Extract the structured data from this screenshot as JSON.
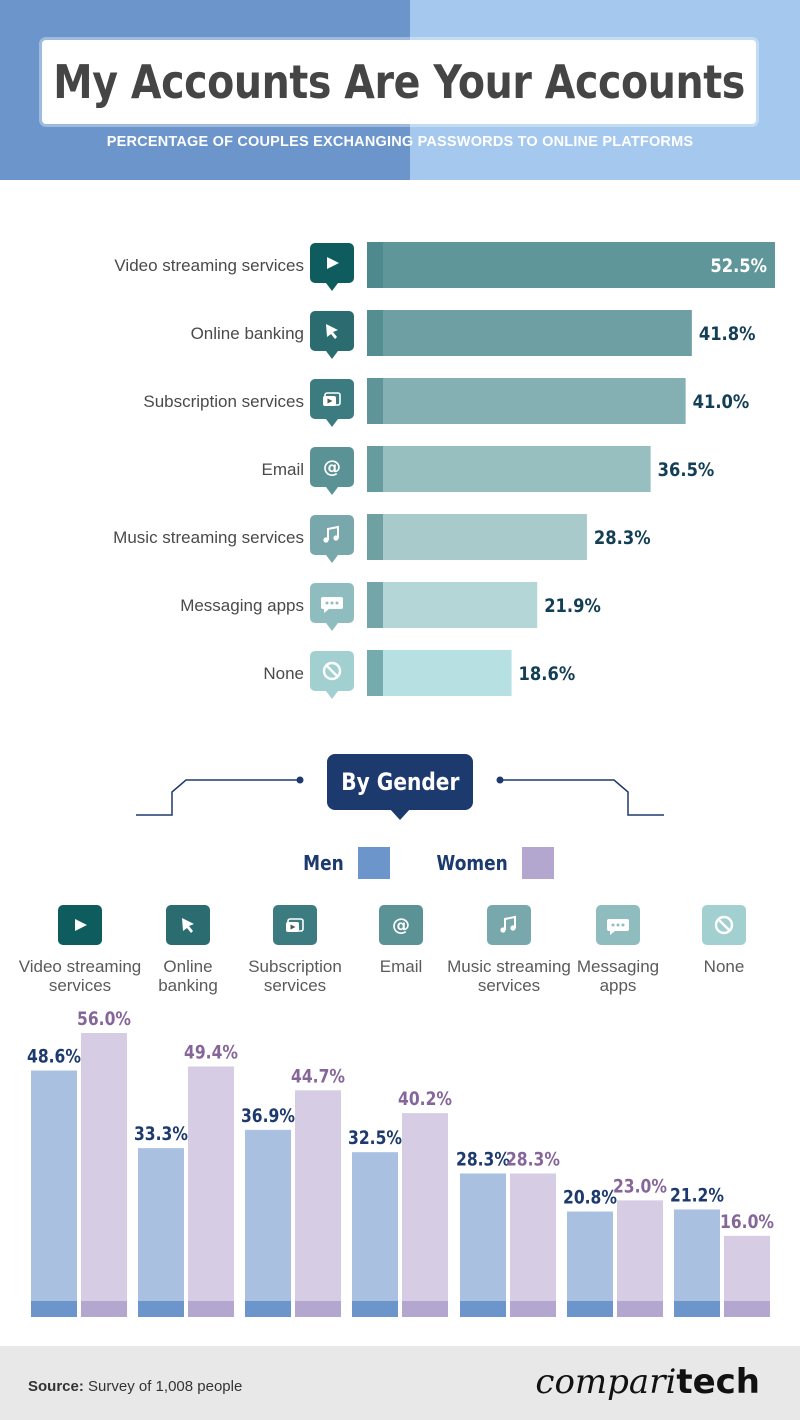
{
  "header": {
    "title": "My Accounts Are Your Accounts",
    "subtitle": "PERCENTAGE OF COUPLES EXCHANGING PASSWORDS TO ONLINE PLATFORMS"
  },
  "gender_section": {
    "badge": "By Gender",
    "legend": [
      {
        "name": "Men",
        "color": "#6b95cb"
      },
      {
        "name": "Women",
        "color": "#b3a6cf"
      }
    ]
  },
  "icons": [
    "play-icon",
    "cursor-icon",
    "video-window-icon",
    "at-sign-icon",
    "music-note-icon",
    "chat-bubble-icon",
    "prohibited-icon"
  ],
  "chart_data": [
    {
      "type": "bar",
      "orientation": "horizontal",
      "title": "My Accounts Are Your Accounts",
      "subtitle": "PERCENTAGE OF COUPLES EXCHANGING PASSWORDS TO ONLINE PLATFORMS",
      "categories": [
        "Video streaming services",
        "Online banking",
        "Subscription services",
        "Email",
        "Music streaming services",
        "Messaging apps",
        "None"
      ],
      "values": [
        52.5,
        41.8,
        41.0,
        36.5,
        28.3,
        21.9,
        18.6
      ],
      "value_labels": [
        "52.5%",
        "41.8%",
        "41.0%",
        "36.5%",
        "28.3%",
        "21.9%",
        "18.6%"
      ],
      "unit": "%",
      "xlim": [
        0,
        52.5
      ],
      "colors": [
        "#5f9699",
        "#6e9fa3",
        "#85b0b3",
        "#98bfc0",
        "#a8cacb",
        "#b4d6d7",
        "#b6e0e1"
      ],
      "label_colors": [
        "#ffffff",
        "#123e56",
        "#123e56",
        "#123e56",
        "#123e56",
        "#123e56",
        "#123e56"
      ],
      "grid": false
    },
    {
      "type": "bar",
      "orientation": "vertical",
      "title": "By Gender",
      "categories": [
        "Video streaming services",
        "Online banking",
        "Subscription services",
        "Email",
        "Music streaming services",
        "Messaging apps",
        "None"
      ],
      "category_labels": [
        [
          "Video streaming",
          "services"
        ],
        [
          "Online",
          "banking"
        ],
        [
          "Subscription",
          "services"
        ],
        [
          "Email"
        ],
        [
          "Music streaming",
          "services"
        ],
        [
          "Messaging",
          "apps"
        ],
        [
          "None"
        ]
      ],
      "series": [
        {
          "name": "Men",
          "values": [
            48.6,
            33.3,
            36.9,
            32.5,
            28.3,
            20.8,
            21.2
          ],
          "labels": [
            "48.6%",
            "33.3%",
            "36.9%",
            "32.5%",
            "28.3%",
            "20.8%",
            "21.2%"
          ],
          "color": "#6b95cb",
          "fill": "#a9c0e0",
          "label_color": "#1d3a6e"
        },
        {
          "name": "Women",
          "values": [
            56.0,
            49.4,
            44.7,
            40.2,
            28.3,
            23.0,
            16.0
          ],
          "labels": [
            "56.0%",
            "49.4%",
            "44.7%",
            "40.2%",
            "28.3%",
            "23.0%",
            "16.0%"
          ],
          "color": "#b3a6cf",
          "fill": "#d6cde4",
          "label_color": "#86669a"
        }
      ],
      "unit": "%",
      "ylim": [
        0,
        56
      ],
      "grid": false
    }
  ],
  "icon_colors": [
    "#0f5c5f",
    "#2a6c70",
    "#3c7c80",
    "#5a9296",
    "#78a8ab",
    "#8fbdbf",
    "#a2d0d1"
  ],
  "footer": {
    "source_label": "Source:",
    "source_text": "Survey of 1,008 people",
    "brand_light": "compari",
    "brand_bold": "tech"
  }
}
